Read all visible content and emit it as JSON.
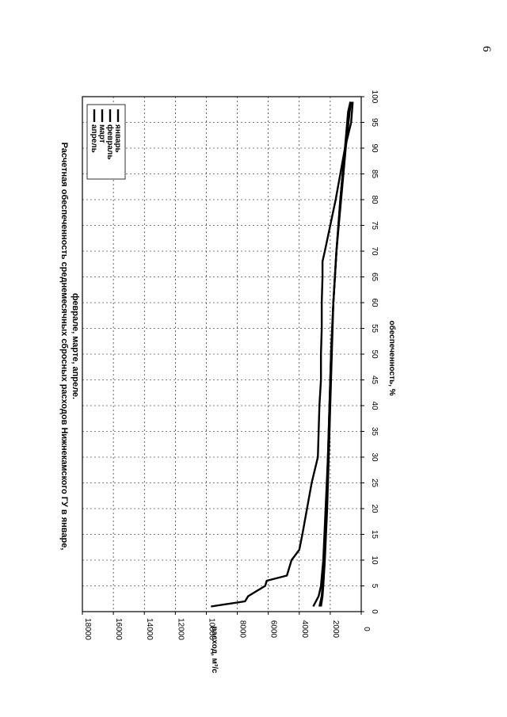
{
  "page": {
    "number": "6"
  },
  "chart_data": {
    "type": "line",
    "title": "Расчетная обеспеченность среднемесячных сбросных расходов Нижнекамского ГУ в январе, феврале, марте, апреле.",
    "title_lines": [
      "Расчетная обеспеченность среднемесячных сбросных расходов Нижнекамского ГУ в январе,",
      "феврале, марте, апреле."
    ],
    "xlabel": "обеспеченность, %",
    "ylabel": "расход, м³/с",
    "xlim": [
      0,
      100
    ],
    "ylim": [
      0,
      18000
    ],
    "x_ticks": [
      0,
      5,
      10,
      15,
      20,
      25,
      30,
      35,
      40,
      45,
      50,
      55,
      60,
      65,
      70,
      75,
      80,
      85,
      90,
      95,
      100
    ],
    "y_ticks": [
      0,
      2000,
      4000,
      6000,
      8000,
      10000,
      12000,
      14000,
      16000,
      18000
    ],
    "grid": true,
    "legend_position": "top-right",
    "rotated": true,
    "series": [
      {
        "name": "январь",
        "color": "#000000",
        "x": [
          1,
          3,
          5,
          10,
          20,
          30,
          40,
          50,
          60,
          70,
          80,
          90,
          97,
          99
        ],
        "y": [
          2600,
          2500,
          2450,
          2350,
          2200,
          2100,
          2000,
          1900,
          1800,
          1600,
          1350,
          1050,
          800,
          700
        ]
      },
      {
        "name": "февраль",
        "color": "#000000",
        "x": [
          1,
          3,
          5,
          10,
          20,
          30,
          40,
          50,
          60,
          70,
          80,
          90,
          97,
          99
        ],
        "y": [
          2700,
          2550,
          2500,
          2400,
          2250,
          2150,
          2050,
          1950,
          1800,
          1600,
          1300,
          1000,
          750,
          650
        ]
      },
      {
        "name": "март",
        "color": "#000000",
        "x": [
          1,
          3,
          5,
          10,
          20,
          30,
          40,
          50,
          60,
          70,
          80,
          90,
          97,
          99
        ],
        "y": [
          3100,
          2750,
          2600,
          2450,
          2300,
          2150,
          2050,
          1950,
          1800,
          1600,
          1350,
          1050,
          850,
          700
        ]
      },
      {
        "name": "апрель",
        "color": "#000000",
        "x": [
          1,
          2,
          3,
          5,
          6,
          7,
          10,
          12,
          15,
          20,
          25,
          30,
          35,
          40,
          45,
          50,
          55,
          60,
          65,
          68,
          70,
          75,
          80,
          85,
          90,
          95,
          99
        ],
        "y": [
          9700,
          7500,
          7300,
          6200,
          6100,
          4800,
          4500,
          4000,
          3800,
          3500,
          3200,
          2800,
          2750,
          2700,
          2600,
          2600,
          2550,
          2550,
          2500,
          2500,
          2350,
          2000,
          1650,
          1350,
          1050,
          650,
          550
        ]
      }
    ]
  }
}
